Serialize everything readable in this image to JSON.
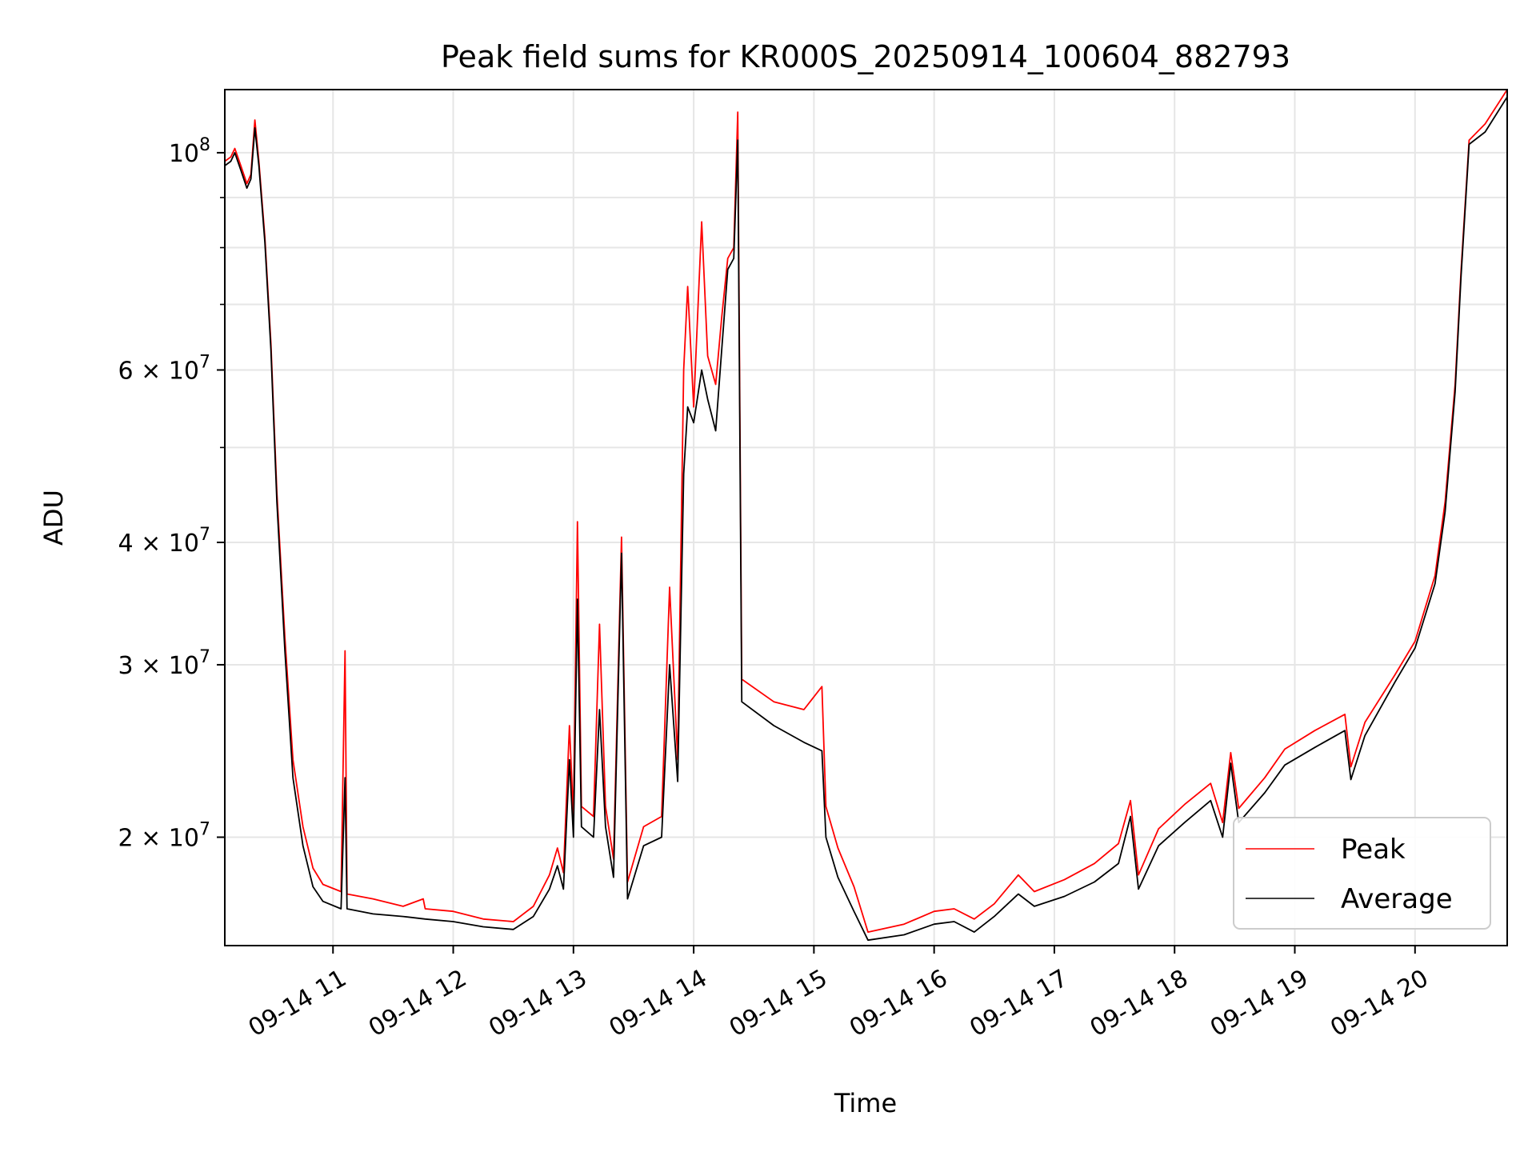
{
  "chart_data": {
    "type": "line",
    "title": "Peak field sums for KR000S_20250914_100604_882793",
    "xlabel": "Time",
    "ylabel": "ADU",
    "yscale": "log",
    "grid": true,
    "legend_position": "bottom-right",
    "xlim": [
      "2025-09-14T10:06",
      "2025-09-14T20:46"
    ],
    "ylim": [
      15500000,
      116000000
    ],
    "x_ticks": [
      {
        "t": "2025-09-14T11:00",
        "label": "09-14 11"
      },
      {
        "t": "2025-09-14T12:00",
        "label": "09-14 12"
      },
      {
        "t": "2025-09-14T13:00",
        "label": "09-14 13"
      },
      {
        "t": "2025-09-14T14:00",
        "label": "09-14 14"
      },
      {
        "t": "2025-09-14T15:00",
        "label": "09-14 15"
      },
      {
        "t": "2025-09-14T16:00",
        "label": "09-14 16"
      },
      {
        "t": "2025-09-14T17:00",
        "label": "09-14 17"
      },
      {
        "t": "2025-09-14T18:00",
        "label": "09-14 18"
      },
      {
        "t": "2025-09-14T19:00",
        "label": "09-14 19"
      },
      {
        "t": "2025-09-14T20:00",
        "label": "09-14 20"
      }
    ],
    "y_major_ticks": [
      {
        "value": 20000000,
        "mantissa": "2 × 10",
        "exp": "7"
      },
      {
        "value": 30000000,
        "mantissa": "3 × 10",
        "exp": "7"
      },
      {
        "value": 40000000,
        "mantissa": "4 × 10",
        "exp": "7"
      },
      {
        "value": 60000000,
        "mantissa": "6 × 10",
        "exp": "7"
      },
      {
        "value": 100000000,
        "mantissa": "10",
        "exp": "8"
      }
    ],
    "y_minor_gridlines": [
      50000000,
      70000000,
      80000000,
      90000000
    ],
    "series": [
      {
        "name": "Peak",
        "color": "#ff0000",
        "points": [
          [
            "2025-09-14T10:06",
            98000000
          ],
          [
            "2025-09-14T10:09",
            99000000
          ],
          [
            "2025-09-14T10:11",
            101000000
          ],
          [
            "2025-09-14T10:14",
            97000000
          ],
          [
            "2025-09-14T10:17",
            93000000
          ],
          [
            "2025-09-14T10:19",
            95000000
          ],
          [
            "2025-09-14T10:21",
            108000000
          ],
          [
            "2025-09-14T10:23",
            98000000
          ],
          [
            "2025-09-14T10:26",
            82000000
          ],
          [
            "2025-09-14T10:29",
            64000000
          ],
          [
            "2025-09-14T10:32",
            45000000
          ],
          [
            "2025-09-14T10:36",
            32000000
          ],
          [
            "2025-09-14T10:40",
            24000000
          ],
          [
            "2025-09-14T10:45",
            20500000
          ],
          [
            "2025-09-14T10:50",
            18600000
          ],
          [
            "2025-09-14T10:55",
            17900000
          ],
          [
            "2025-09-14T11:04",
            17600000
          ],
          [
            "2025-09-14T11:06",
            31000000
          ],
          [
            "2025-09-14T11:07",
            17500000
          ],
          [
            "2025-09-14T11:20",
            17300000
          ],
          [
            "2025-09-14T11:35",
            17000000
          ],
          [
            "2025-09-14T11:45",
            17300000
          ],
          [
            "2025-09-14T11:46",
            16900000
          ],
          [
            "2025-09-14T12:00",
            16800000
          ],
          [
            "2025-09-14T12:15",
            16500000
          ],
          [
            "2025-09-14T12:30",
            16400000
          ],
          [
            "2025-09-14T12:40",
            17000000
          ],
          [
            "2025-09-14T12:48",
            18300000
          ],
          [
            "2025-09-14T12:52",
            19500000
          ],
          [
            "2025-09-14T12:55",
            18400000
          ],
          [
            "2025-09-14T12:58",
            26000000
          ],
          [
            "2025-09-14T13:00",
            21000000
          ],
          [
            "2025-09-14T13:02",
            42000000
          ],
          [
            "2025-09-14T13:04",
            21500000
          ],
          [
            "2025-09-14T13:10",
            21000000
          ],
          [
            "2025-09-14T13:13",
            33000000
          ],
          [
            "2025-09-14T13:16",
            21500000
          ],
          [
            "2025-09-14T13:20",
            19000000
          ],
          [
            "2025-09-14T13:24",
            40500000
          ],
          [
            "2025-09-14T13:27",
            18000000
          ],
          [
            "2025-09-14T13:35",
            20500000
          ],
          [
            "2025-09-14T13:44",
            21000000
          ],
          [
            "2025-09-14T13:48",
            36000000
          ],
          [
            "2025-09-14T13:52",
            24000000
          ],
          [
            "2025-09-14T13:55",
            60000000
          ],
          [
            "2025-09-14T13:57",
            73000000
          ],
          [
            "2025-09-14T14:00",
            55000000
          ],
          [
            "2025-09-14T14:04",
            85000000
          ],
          [
            "2025-09-14T14:07",
            62000000
          ],
          [
            "2025-09-14T14:11",
            58000000
          ],
          [
            "2025-09-14T14:14",
            68000000
          ],
          [
            "2025-09-14T14:17",
            78000000
          ],
          [
            "2025-09-14T14:20",
            80000000
          ],
          [
            "2025-09-14T14:22",
            110000000
          ],
          [
            "2025-09-14T14:24",
            29000000
          ],
          [
            "2025-09-14T14:40",
            27500000
          ],
          [
            "2025-09-14T14:55",
            27000000
          ],
          [
            "2025-09-14T15:04",
            28500000
          ],
          [
            "2025-09-14T15:06",
            21500000
          ],
          [
            "2025-09-14T15:12",
            19500000
          ],
          [
            "2025-09-14T15:20",
            17800000
          ],
          [
            "2025-09-14T15:27",
            16000000
          ],
          [
            "2025-09-14T15:45",
            16300000
          ],
          [
            "2025-09-14T16:00",
            16800000
          ],
          [
            "2025-09-14T16:10",
            16900000
          ],
          [
            "2025-09-14T16:20",
            16500000
          ],
          [
            "2025-09-14T16:30",
            17100000
          ],
          [
            "2025-09-14T16:42",
            18300000
          ],
          [
            "2025-09-14T16:50",
            17600000
          ],
          [
            "2025-09-14T17:05",
            18100000
          ],
          [
            "2025-09-14T17:20",
            18800000
          ],
          [
            "2025-09-14T17:32",
            19700000
          ],
          [
            "2025-09-14T17:38",
            21800000
          ],
          [
            "2025-09-14T17:42",
            18300000
          ],
          [
            "2025-09-14T17:52",
            20400000
          ],
          [
            "2025-09-14T18:05",
            21600000
          ],
          [
            "2025-09-14T18:18",
            22700000
          ],
          [
            "2025-09-14T18:24",
            20700000
          ],
          [
            "2025-09-14T18:28",
            24400000
          ],
          [
            "2025-09-14T18:32",
            21400000
          ],
          [
            "2025-09-14T18:45",
            23000000
          ],
          [
            "2025-09-14T18:55",
            24600000
          ],
          [
            "2025-09-14T19:10",
            25700000
          ],
          [
            "2025-09-14T19:25",
            26700000
          ],
          [
            "2025-09-14T19:28",
            23600000
          ],
          [
            "2025-09-14T19:35",
            26200000
          ],
          [
            "2025-09-14T19:50",
            29300000
          ],
          [
            "2025-09-14T20:00",
            31700000
          ],
          [
            "2025-09-14T20:10",
            37000000
          ],
          [
            "2025-09-14T20:15",
            44000000
          ],
          [
            "2025-09-14T20:20",
            58000000
          ],
          [
            "2025-09-14T20:23",
            76000000
          ],
          [
            "2025-09-14T20:27",
            103000000
          ],
          [
            "2025-09-14T20:35",
            107000000
          ],
          [
            "2025-09-14T20:46",
            116000000
          ]
        ]
      },
      {
        "name": "Average",
        "color": "#000000",
        "points": [
          [
            "2025-09-14T10:06",
            97000000
          ],
          [
            "2025-09-14T10:09",
            98000000
          ],
          [
            "2025-09-14T10:11",
            100000000
          ],
          [
            "2025-09-14T10:14",
            96000000
          ],
          [
            "2025-09-14T10:17",
            92000000
          ],
          [
            "2025-09-14T10:19",
            94000000
          ],
          [
            "2025-09-14T10:21",
            106000000
          ],
          [
            "2025-09-14T10:23",
            97000000
          ],
          [
            "2025-09-14T10:26",
            81000000
          ],
          [
            "2025-09-14T10:29",
            63000000
          ],
          [
            "2025-09-14T10:32",
            44000000
          ],
          [
            "2025-09-14T10:36",
            31000000
          ],
          [
            "2025-09-14T10:40",
            23000000
          ],
          [
            "2025-09-14T10:45",
            19600000
          ],
          [
            "2025-09-14T10:50",
            17800000
          ],
          [
            "2025-09-14T10:55",
            17200000
          ],
          [
            "2025-09-14T11:04",
            16900000
          ],
          [
            "2025-09-14T11:06",
            23000000
          ],
          [
            "2025-09-14T11:07",
            16900000
          ],
          [
            "2025-09-14T11:20",
            16700000
          ],
          [
            "2025-09-14T11:35",
            16600000
          ],
          [
            "2025-09-14T11:46",
            16500000
          ],
          [
            "2025-09-14T12:00",
            16400000
          ],
          [
            "2025-09-14T12:15",
            16200000
          ],
          [
            "2025-09-14T12:30",
            16100000
          ],
          [
            "2025-09-14T12:40",
            16600000
          ],
          [
            "2025-09-14T12:48",
            17700000
          ],
          [
            "2025-09-14T12:52",
            18700000
          ],
          [
            "2025-09-14T12:55",
            17700000
          ],
          [
            "2025-09-14T12:58",
            24000000
          ],
          [
            "2025-09-14T13:00",
            20000000
          ],
          [
            "2025-09-14T13:02",
            35000000
          ],
          [
            "2025-09-14T13:04",
            20500000
          ],
          [
            "2025-09-14T13:10",
            20000000
          ],
          [
            "2025-09-14T13:13",
            27000000
          ],
          [
            "2025-09-14T13:16",
            20500000
          ],
          [
            "2025-09-14T13:20",
            18200000
          ],
          [
            "2025-09-14T13:24",
            39000000
          ],
          [
            "2025-09-14T13:27",
            17300000
          ],
          [
            "2025-09-14T13:35",
            19600000
          ],
          [
            "2025-09-14T13:44",
            20000000
          ],
          [
            "2025-09-14T13:48",
            30000000
          ],
          [
            "2025-09-14T13:52",
            22800000
          ],
          [
            "2025-09-14T13:55",
            47000000
          ],
          [
            "2025-09-14T13:57",
            55000000
          ],
          [
            "2025-09-14T14:00",
            53000000
          ],
          [
            "2025-09-14T14:04",
            60000000
          ],
          [
            "2025-09-14T14:07",
            56000000
          ],
          [
            "2025-09-14T14:11",
            52000000
          ],
          [
            "2025-09-14T14:14",
            63000000
          ],
          [
            "2025-09-14T14:17",
            76000000
          ],
          [
            "2025-09-14T14:20",
            78000000
          ],
          [
            "2025-09-14T14:22",
            103000000
          ],
          [
            "2025-09-14T14:24",
            27500000
          ],
          [
            "2025-09-14T14:40",
            26000000
          ],
          [
            "2025-09-14T14:55",
            25000000
          ],
          [
            "2025-09-14T15:04",
            24500000
          ],
          [
            "2025-09-14T15:06",
            20000000
          ],
          [
            "2025-09-14T15:12",
            18200000
          ],
          [
            "2025-09-14T15:20",
            16800000
          ],
          [
            "2025-09-14T15:27",
            15700000
          ],
          [
            "2025-09-14T15:45",
            15900000
          ],
          [
            "2025-09-14T16:00",
            16300000
          ],
          [
            "2025-09-14T16:10",
            16400000
          ],
          [
            "2025-09-14T16:20",
            16000000
          ],
          [
            "2025-09-14T16:30",
            16600000
          ],
          [
            "2025-09-14T16:42",
            17500000
          ],
          [
            "2025-09-14T16:50",
            17000000
          ],
          [
            "2025-09-14T17:05",
            17400000
          ],
          [
            "2025-09-14T17:20",
            18000000
          ],
          [
            "2025-09-14T17:32",
            18800000
          ],
          [
            "2025-09-14T17:38",
            21000000
          ],
          [
            "2025-09-14T17:42",
            17700000
          ],
          [
            "2025-09-14T17:52",
            19600000
          ],
          [
            "2025-09-14T18:05",
            20700000
          ],
          [
            "2025-09-14T18:18",
            21800000
          ],
          [
            "2025-09-14T18:24",
            20000000
          ],
          [
            "2025-09-14T18:28",
            23800000
          ],
          [
            "2025-09-14T18:32",
            20700000
          ],
          [
            "2025-09-14T18:45",
            22200000
          ],
          [
            "2025-09-14T18:55",
            23700000
          ],
          [
            "2025-09-14T19:10",
            24700000
          ],
          [
            "2025-09-14T19:25",
            25700000
          ],
          [
            "2025-09-14T19:28",
            22900000
          ],
          [
            "2025-09-14T19:35",
            25400000
          ],
          [
            "2025-09-14T19:50",
            28800000
          ],
          [
            "2025-09-14T20:00",
            31200000
          ],
          [
            "2025-09-14T20:10",
            36300000
          ],
          [
            "2025-09-14T20:15",
            43000000
          ],
          [
            "2025-09-14T20:20",
            57000000
          ],
          [
            "2025-09-14T20:23",
            75000000
          ],
          [
            "2025-09-14T20:27",
            102000000
          ],
          [
            "2025-09-14T20:35",
            105000000
          ],
          [
            "2025-09-14T20:46",
            114000000
          ]
        ]
      }
    ]
  }
}
